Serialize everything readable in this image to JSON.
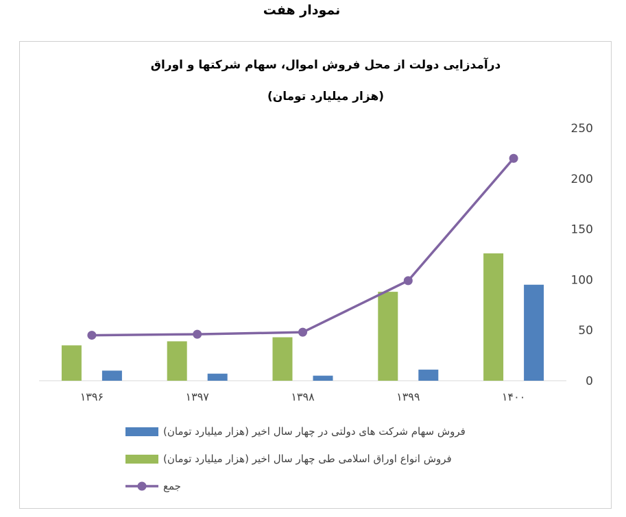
{
  "caption": "نمودار هفت",
  "chart_data": {
    "type": "bar",
    "title": "درآمدزایی دولت از محل فروش اموال، سهام شرکتها و اوراق",
    "subtitle": "(هزار میلیارد تومان)",
    "categories": [
      "۱۳۹۶",
      "۱۳۹۷",
      "۱۳۹۸",
      "۱۳۹۹",
      "۱۴۰۰"
    ],
    "ylim": [
      0,
      250
    ],
    "yticks": [
      "0",
      "50",
      "100",
      "150",
      "200",
      "250"
    ],
    "ytick_values": [
      0,
      50,
      100,
      150,
      200,
      250
    ],
    "yaxis_position": "right",
    "grid": false,
    "legend_position": "bottom",
    "series": [
      {
        "name": "فروش انواع اوراق اسلامی طی چهار سال اخیر (هزار میلیارد تومان)",
        "kind": "bar",
        "color": "#9BBB59",
        "values": [
          35,
          39,
          43,
          88,
          126
        ]
      },
      {
        "name": "فروش سهام شرکت های دولتی در چهار سال اخیر (هزار میلیارد تومان)",
        "kind": "bar",
        "color": "#4F81BD",
        "values": [
          10,
          7,
          5,
          11,
          95
        ]
      },
      {
        "name": "جمع",
        "kind": "line",
        "color": "#8064A2",
        "values": [
          45,
          46,
          48,
          99,
          220
        ]
      }
    ],
    "legend_order": [
      1,
      0,
      2
    ]
  }
}
